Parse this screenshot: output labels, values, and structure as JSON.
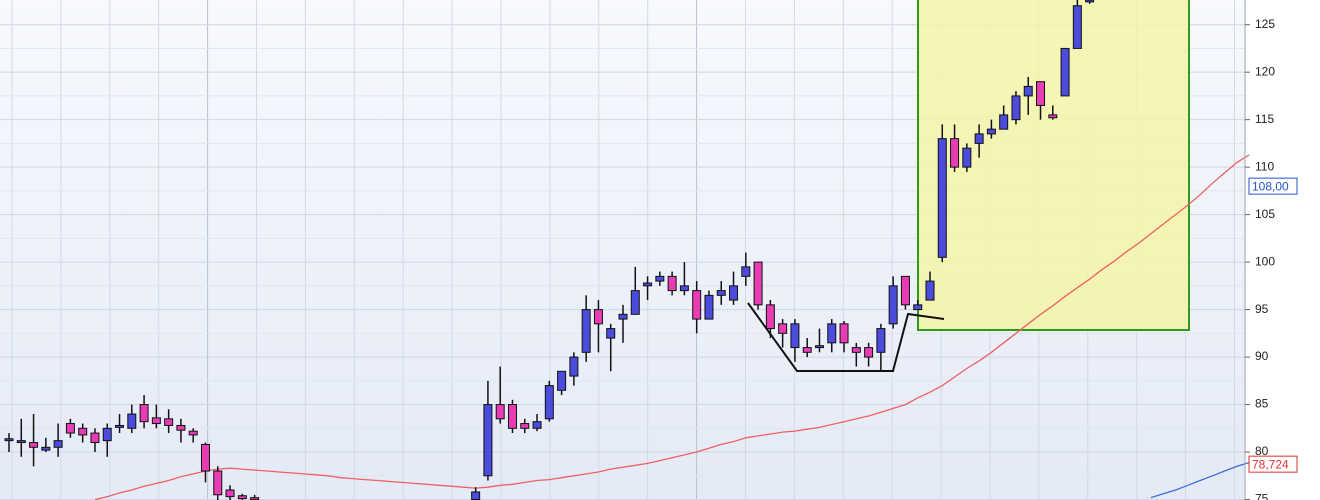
{
  "chart_data": {
    "type": "candlestick",
    "categories": [
      null,
      null,
      null,
      null,
      null,
      null,
      null,
      null,
      null,
      null,
      null,
      null,
      null,
      null,
      null,
      null,
      null,
      null,
      null,
      null,
      null,
      null,
      null,
      null,
      null,
      null,
      null,
      null,
      null,
      null,
      null,
      null,
      null,
      null,
      null,
      null,
      null,
      null,
      null,
      null,
      null,
      null,
      null,
      null,
      null,
      null,
      null,
      null,
      null,
      null,
      null,
      null,
      null,
      null,
      null,
      null,
      null,
      null,
      null,
      null,
      null,
      null,
      null,
      null,
      null,
      null,
      null,
      null,
      null,
      null,
      null,
      null,
      null,
      null,
      null,
      null,
      null,
      null,
      null,
      null,
      null,
      null,
      null,
      null,
      null,
      null,
      null,
      null,
      null,
      null,
      null,
      null,
      null,
      null,
      null,
      null,
      null,
      null,
      null,
      null,
      null,
      null
    ],
    "up_color": "#4b4bdc",
    "down_color": "#e83cb4",
    "open": [
      81.2,
      81,
      81,
      80.2,
      80.5,
      83,
      82.5,
      82,
      81.2,
      82.6,
      82.5,
      85,
      83.6,
      83.5,
      82.8,
      82.2,
      80.8,
      78,
      76,
      75.4,
      75.2,
      null,
      null,
      null,
      null,
      null,
      null,
      null,
      null,
      null,
      null,
      null,
      null,
      null,
      null,
      null,
      null,
      null,
      75,
      77.5,
      85,
      85,
      83,
      82.5,
      83.5,
      86.5,
      88,
      90.5,
      95,
      92,
      94,
      94.5,
      97.5,
      98,
      98.5,
      97,
      97,
      94,
      96.5,
      96,
      98.5,
      100,
      95.5,
      93.5,
      91,
      91,
      91,
      91.5,
      93.5,
      91,
      91,
      90.5,
      93.5,
      98.5,
      95,
      96,
      100.5,
      113,
      110,
      112.5,
      113.5,
      114,
      115,
      117.5,
      119,
      115.5,
      117.5,
      122.5,
      127.4,
      null,
      null,
      null,
      null,
      null,
      null,
      null,
      null,
      null,
      null,
      null,
      null,
      null
    ],
    "high": [
      82,
      83.5,
      84,
      81.5,
      83,
      83.5,
      83,
      82.5,
      83,
      84,
      85,
      86,
      85,
      84.5,
      83.5,
      82.5,
      81,
      78.5,
      76.5,
      75.6,
      75.5,
      null,
      null,
      null,
      null,
      null,
      null,
      null,
      null,
      null,
      null,
      null,
      null,
      null,
      null,
      null,
      null,
      null,
      76.3,
      87.5,
      89,
      85.5,
      83.5,
      84,
      87.5,
      88.5,
      90.5,
      96.5,
      96,
      93.5,
      95.5,
      99.5,
      98.5,
      99,
      99,
      100,
      98,
      97,
      98,
      99,
      101,
      100,
      96,
      94,
      94,
      92,
      93,
      94,
      93.8,
      91.5,
      91.5,
      93.5,
      98.5,
      98.5,
      96,
      99,
      114.5,
      114.5,
      112.5,
      114.5,
      115,
      116.5,
      118,
      119.5,
      119,
      116.5,
      122.5,
      127.6,
      127.6,
      null,
      null,
      null,
      null,
      null,
      null,
      null,
      null,
      null,
      null,
      null,
      null,
      null
    ],
    "low": [
      80,
      79.5,
      78.5,
      80,
      79.5,
      81.5,
      81,
      80,
      79.5,
      82,
      82,
      82.5,
      82.5,
      82,
      81,
      81,
      76.8,
      74.95,
      74.95,
      74.95,
      74.95,
      null,
      null,
      null,
      null,
      null,
      null,
      null,
      null,
      null,
      null,
      null,
      null,
      null,
      null,
      null,
      null,
      null,
      74.95,
      77,
      83,
      82,
      82,
      82.2,
      83.2,
      86,
      87,
      89.5,
      90.5,
      88.5,
      91.5,
      94.5,
      96,
      97.5,
      96.5,
      96.5,
      92.5,
      94,
      95.5,
      95.5,
      97.5,
      95,
      92,
      91,
      89.5,
      90,
      90.5,
      90.5,
      90.5,
      89,
      89,
      88.5,
      93,
      95,
      95,
      96,
      100,
      109.5,
      109.5,
      111,
      113,
      114,
      114.5,
      115.5,
      115,
      115,
      117.5,
      122.5,
      127.2,
      null,
      null,
      null,
      null,
      null,
      null,
      null,
      null,
      null,
      null,
      null,
      null,
      null
    ],
    "close": [
      81.4,
      81.2,
      80.5,
      80.5,
      81.2,
      82,
      81.8,
      81,
      82.5,
      82.8,
      84,
      83.2,
      83,
      82.8,
      82.3,
      81.8,
      78,
      75.5,
      75.3,
      75.1,
      75.0,
      null,
      null,
      null,
      null,
      null,
      null,
      null,
      null,
      null,
      null,
      null,
      null,
      null,
      null,
      null,
      null,
      null,
      75.8,
      85,
      83.5,
      82.5,
      82.5,
      83.2,
      87,
      88.5,
      90,
      95,
      93.5,
      93,
      94.5,
      97,
      97.8,
      98.5,
      97,
      97.5,
      94,
      96.5,
      97,
      97.5,
      99.5,
      95.5,
      93,
      92.5,
      93.5,
      90.5,
      91.2,
      93.5,
      91.5,
      90.5,
      90,
      93,
      97.5,
      95.5,
      95.5,
      98,
      113,
      110,
      112,
      113.5,
      114,
      115.5,
      117.5,
      118.5,
      116.5,
      115.2,
      122.5,
      127,
      127.6,
      null,
      null,
      null,
      null,
      null,
      null,
      null,
      null,
      null,
      null,
      null,
      null,
      null
    ],
    "lines": [
      {
        "color": "#f06060",
        "values": [
          null,
          null,
          null,
          null,
          null,
          null,
          null,
          75.0,
          75.3,
          75.7,
          76.0,
          76.4,
          76.7,
          77.0,
          77.4,
          77.7,
          78.0,
          78.2,
          78.3,
          78.2,
          78.1,
          78.0,
          77.9,
          77.8,
          77.7,
          77.6,
          77.5,
          77.3,
          77.2,
          77.1,
          77.0,
          76.9,
          76.8,
          76.7,
          76.6,
          76.5,
          76.4,
          76.3,
          76.2,
          76.3,
          76.5,
          76.6,
          76.8,
          77.0,
          77.1,
          77.3,
          77.5,
          77.7,
          77.9,
          78.2,
          78.4,
          78.6,
          78.8,
          79.1,
          79.4,
          79.7,
          80.0,
          80.4,
          80.8,
          81.1,
          81.5,
          81.7,
          81.9,
          82.1,
          82.2,
          82.4,
          82.6,
          82.9,
          83.2,
          83.5,
          83.8,
          84.2,
          84.6,
          85.0,
          85.7,
          86.3,
          87.0,
          87.9,
          88.8,
          89.6,
          90.5,
          91.5,
          92.5,
          93.5,
          94.5,
          95.4,
          96.4,
          97.3,
          98.2,
          99.2,
          100.1,
          101.1,
          102.0,
          103.0,
          104.0,
          105.0,
          106.0,
          107.1,
          108.3,
          109.4,
          110.5,
          111.3
        ]
      },
      {
        "color": "#3a6fd8",
        "values": [
          null,
          null,
          null,
          null,
          null,
          null,
          null,
          null,
          null,
          null,
          null,
          null,
          null,
          null,
          null,
          null,
          null,
          null,
          null,
          null,
          null,
          null,
          null,
          null,
          null,
          null,
          null,
          null,
          null,
          null,
          null,
          null,
          null,
          null,
          null,
          null,
          null,
          null,
          null,
          null,
          null,
          null,
          null,
          null,
          null,
          null,
          null,
          null,
          null,
          null,
          null,
          null,
          null,
          null,
          null,
          null,
          null,
          null,
          null,
          null,
          null,
          null,
          null,
          null,
          null,
          null,
          null,
          null,
          null,
          null,
          null,
          null,
          null,
          null,
          null,
          null,
          null,
          null,
          null,
          null,
          null,
          null,
          null,
          null,
          null,
          null,
          null,
          null,
          null,
          null,
          null,
          null,
          null,
          75.2,
          75.6,
          76.0,
          76.5,
          77.0,
          77.5,
          78.0,
          78.5,
          78.9
        ]
      }
    ],
    "price_labels": [
      {
        "value": 108,
        "label": "108,00",
        "color": "#2255cc"
      },
      {
        "value": 78.724,
        "label": "78,724",
        "color": "#e03030"
      }
    ],
    "ylim": [
      74.95,
      127.6
    ],
    "yticks": [
      75,
      80,
      85,
      90,
      95,
      100,
      105,
      110,
      115,
      120,
      125
    ],
    "grid": true
  }
}
